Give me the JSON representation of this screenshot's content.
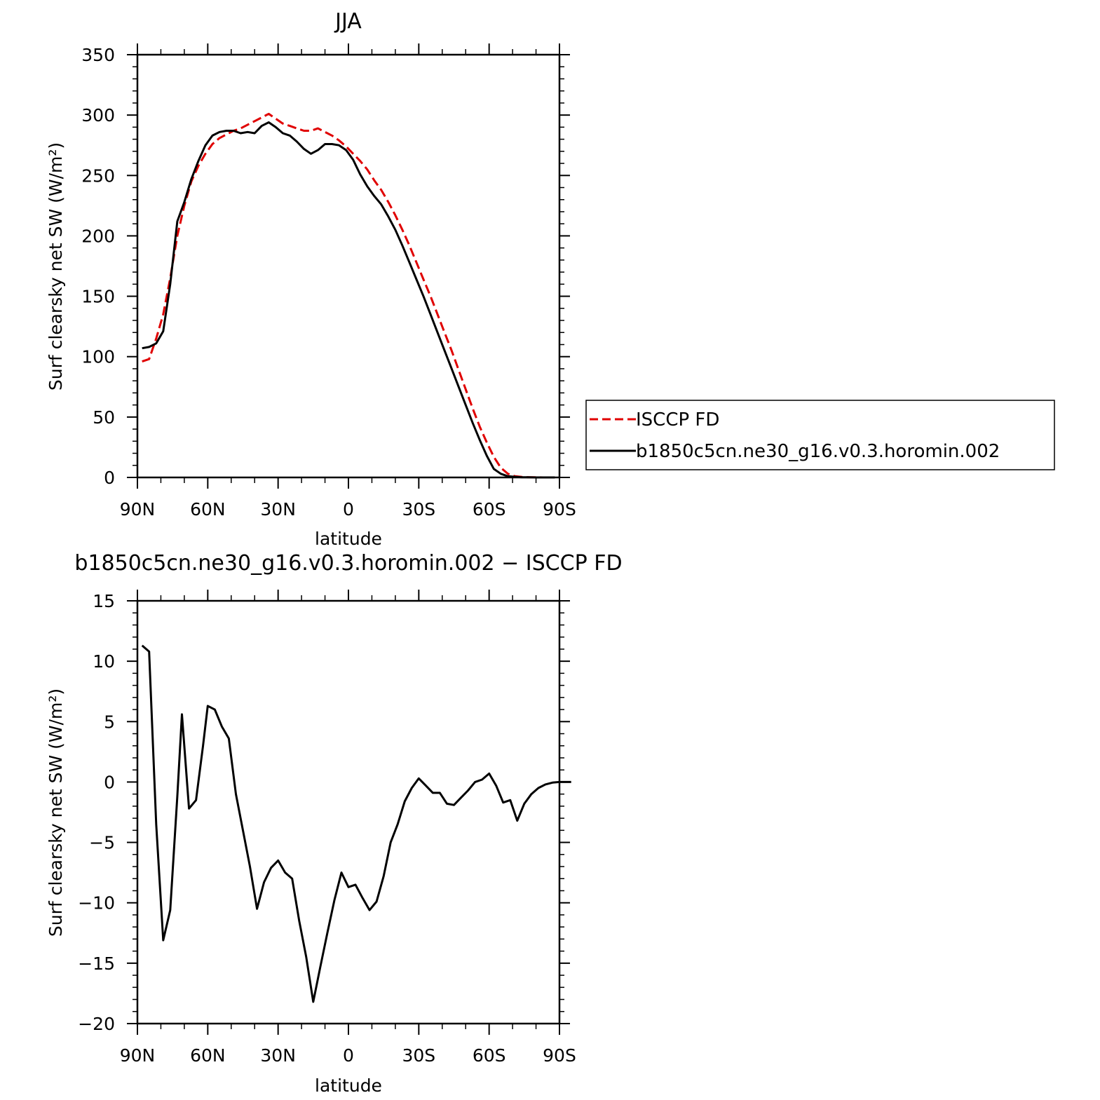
{
  "chart_data": [
    {
      "type": "line",
      "title": "JJA",
      "xlabel": "latitude",
      "ylabel": "Surf clearsky net SW (W/m²)",
      "xlim": [
        90,
        -90
      ],
      "ylim": [
        0,
        350
      ],
      "x_ticks": [
        90,
        60,
        30,
        0,
        -30,
        -60,
        -90
      ],
      "x_tick_labels": [
        "90N",
        "60N",
        "30N",
        "0",
        "30S",
        "60S",
        "90S"
      ],
      "y_ticks": [
        0,
        50,
        100,
        150,
        200,
        250,
        300,
        350
      ],
      "y_tick_labels": [
        "0",
        "50",
        "100",
        "150",
        "200",
        "250",
        "300",
        "350"
      ],
      "legend": {
        "position": "right",
        "entries": [
          "ISCCP FD",
          "b1850c5cn.ne30_g16.v0.3.horomin.002"
        ]
      },
      "grid": false,
      "series": [
        {
          "name": "ISCCP FD",
          "color": "#e00000",
          "dash": "dashed",
          "points": [
            [
              88,
              96
            ],
            [
              85,
              98
            ],
            [
              82,
              115
            ],
            [
              79,
              135
            ],
            [
              76,
              165
            ],
            [
              73,
              200
            ],
            [
              70,
              225
            ],
            [
              67,
              245
            ],
            [
              64,
              258
            ],
            [
              61,
              268
            ],
            [
              58,
              276
            ],
            [
              55,
              281
            ],
            [
              52,
              284
            ],
            [
              49,
              287
            ],
            [
              46,
              289
            ],
            [
              43,
              292
            ],
            [
              40,
              295
            ],
            [
              37,
              298
            ],
            [
              34,
              301
            ],
            [
              31,
              297
            ],
            [
              28,
              293
            ],
            [
              25,
              291
            ],
            [
              22,
              289
            ],
            [
              19,
              287
            ],
            [
              16,
              287
            ],
            [
              13,
              289
            ],
            [
              10,
              286
            ],
            [
              7,
              283
            ],
            [
              4,
              279
            ],
            [
              1,
              274
            ],
            [
              -2,
              268
            ],
            [
              -5,
              262
            ],
            [
              -8,
              255
            ],
            [
              -11,
              246
            ],
            [
              -14,
              238
            ],
            [
              -17,
              228
            ],
            [
              -20,
              217
            ],
            [
              -23,
              205
            ],
            [
              -26,
              192
            ],
            [
              -29,
              178
            ],
            [
              -32,
              164
            ],
            [
              -35,
              150
            ],
            [
              -38,
              135
            ],
            [
              -41,
              120
            ],
            [
              -44,
              105
            ],
            [
              -47,
              89
            ],
            [
              -50,
              73
            ],
            [
              -53,
              57
            ],
            [
              -56,
              42
            ],
            [
              -59,
              29
            ],
            [
              -62,
              17
            ],
            [
              -65,
              8
            ],
            [
              -68,
              3
            ],
            [
              -71,
              1
            ],
            [
              -74,
              0.4
            ],
            [
              -77,
              0.2
            ],
            [
              -80,
              0.1
            ],
            [
              -83,
              0
            ],
            [
              -86,
              0
            ],
            [
              -88,
              0
            ]
          ]
        },
        {
          "name": "b1850c5cn.ne30_g16.v0.3.horomin.002",
          "color": "#000000",
          "dash": "solid",
          "points": [
            [
              88,
              107
            ],
            [
              85,
              108
            ],
            [
              82,
              111
            ],
            [
              79,
              121
            ],
            [
              76,
              160
            ],
            [
              73,
              212
            ],
            [
              70,
              228
            ],
            [
              67,
              247
            ],
            [
              64,
              262
            ],
            [
              61,
              275
            ],
            [
              58,
              283
            ],
            [
              55,
              286
            ],
            [
              52,
              287
            ],
            [
              49,
              287
            ],
            [
              46,
              285
            ],
            [
              43,
              286
            ],
            [
              40,
              285
            ],
            [
              37,
              291
            ],
            [
              34,
              294
            ],
            [
              31,
              290
            ],
            [
              28,
              285
            ],
            [
              25,
              283
            ],
            [
              22,
              278
            ],
            [
              19,
              272
            ],
            [
              16,
              268
            ],
            [
              13,
              271
            ],
            [
              10,
              276
            ],
            [
              7,
              276
            ],
            [
              4,
              275
            ],
            [
              1,
              271
            ],
            [
              -2,
              263
            ],
            [
              -5,
              251
            ],
            [
              -8,
              241
            ],
            [
              -11,
              233
            ],
            [
              -14,
              226
            ],
            [
              -17,
              216
            ],
            [
              -20,
              205
            ],
            [
              -23,
              192
            ],
            [
              -26,
              178
            ],
            [
              -29,
              164
            ],
            [
              -32,
              150
            ],
            [
              -35,
              135
            ],
            [
              -38,
              120
            ],
            [
              -41,
              105
            ],
            [
              -44,
              90
            ],
            [
              -47,
              75
            ],
            [
              -50,
              60
            ],
            [
              -53,
              45
            ],
            [
              -56,
              31
            ],
            [
              -59,
              18
            ],
            [
              -62,
              7
            ],
            [
              -65,
              3
            ],
            [
              -68,
              1
            ],
            [
              -71,
              0.5
            ],
            [
              -74,
              0.2
            ],
            [
              -77,
              0.1
            ],
            [
              -80,
              0
            ],
            [
              -83,
              0
            ],
            [
              -86,
              0
            ],
            [
              -88,
              0
            ]
          ]
        }
      ]
    },
    {
      "type": "line",
      "title": "b1850c5cn.ne30_g16.v0.3.horomin.002 − ISCCP FD",
      "xlabel": "latitude",
      "ylabel": "Surf clearsky net SW (W/m²)",
      "xlim": [
        90,
        -90
      ],
      "ylim": [
        -20,
        15
      ],
      "x_ticks": [
        90,
        60,
        30,
        0,
        -30,
        -60,
        -90
      ],
      "x_tick_labels": [
        "90N",
        "60N",
        "30N",
        "0",
        "30S",
        "60S",
        "90S"
      ],
      "y_ticks": [
        -20,
        -15,
        -10,
        -5,
        0,
        5,
        10,
        15
      ],
      "y_tick_labels": [
        "−20",
        "−15",
        "−10",
        "−5",
        "0",
        "5",
        "10",
        "15"
      ],
      "grid": false,
      "series": [
        {
          "color": "#000000",
          "dash": "solid",
          "points": [
            [
              88,
              11.3
            ],
            [
              85,
              10.8
            ],
            [
              82,
              -3.5
            ],
            [
              79,
              -13.1
            ],
            [
              76,
              -10.6
            ],
            [
              73,
              -1.2
            ],
            [
              71,
              5.6
            ],
            [
              68,
              -2.2
            ],
            [
              65,
              -1.5
            ],
            [
              62,
              3.0
            ],
            [
              60,
              6.3
            ],
            [
              57,
              6.0
            ],
            [
              54,
              4.6
            ],
            [
              51,
              3.6
            ],
            [
              48,
              -1.0
            ],
            [
              45,
              -4.0
            ],
            [
              42,
              -7.0
            ],
            [
              39,
              -10.5
            ],
            [
              36,
              -8.3
            ],
            [
              33,
              -7.1
            ],
            [
              30,
              -6.5
            ],
            [
              27,
              -7.5
            ],
            [
              24,
              -8.0
            ],
            [
              21,
              -11.5
            ],
            [
              18,
              -14.5
            ],
            [
              15,
              -18.2
            ],
            [
              12,
              -15.3
            ],
            [
              9,
              -12.5
            ],
            [
              6,
              -9.8
            ],
            [
              3,
              -7.5
            ],
            [
              0,
              -8.7
            ],
            [
              -3,
              -8.5
            ],
            [
              -6,
              -9.6
            ],
            [
              -9,
              -10.6
            ],
            [
              -12,
              -9.9
            ],
            [
              -15,
              -7.8
            ],
            [
              -18,
              -5.0
            ],
            [
              -21,
              -3.5
            ],
            [
              -24,
              -1.6
            ],
            [
              -27,
              -0.5
            ],
            [
              -30,
              0.3
            ],
            [
              -33,
              -0.3
            ],
            [
              -36,
              -0.9
            ],
            [
              -39,
              -0.9
            ],
            [
              -42,
              -1.8
            ],
            [
              -45,
              -1.9
            ],
            [
              -48,
              -1.3
            ],
            [
              -51,
              -0.7
            ],
            [
              -54,
              0.0
            ],
            [
              -57,
              0.2
            ],
            [
              -60,
              0.7
            ],
            [
              -63,
              -0.3
            ],
            [
              -66,
              -1.7
            ],
            [
              -69,
              -1.5
            ],
            [
              -72,
              -3.2
            ],
            [
              -75,
              -1.8
            ],
            [
              -78,
              -1.0
            ],
            [
              -81,
              -0.5
            ],
            [
              -84,
              -0.2
            ],
            [
              -87,
              -0.05
            ],
            [
              -90,
              0
            ],
            [
              -95,
              0
            ]
          ]
        }
      ]
    }
  ]
}
